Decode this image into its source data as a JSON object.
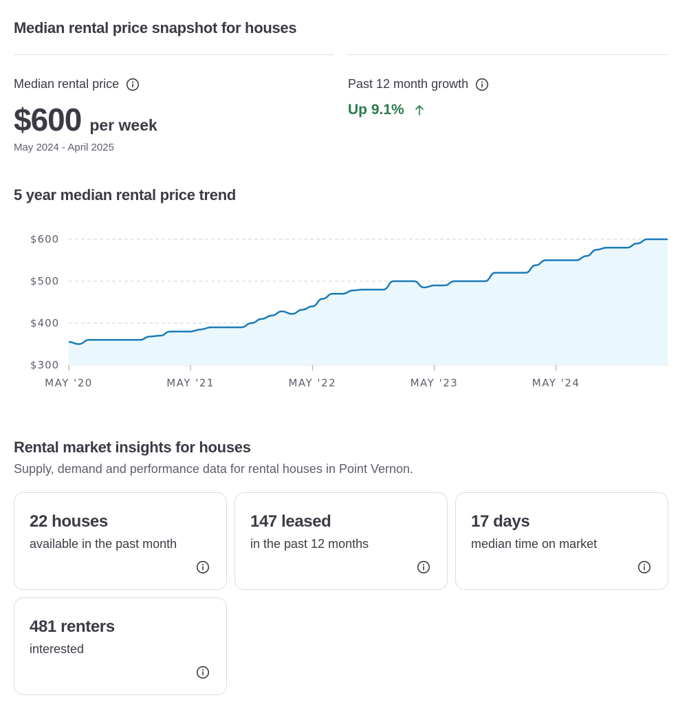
{
  "snapshot": {
    "title": "Median rental price snapshot for houses",
    "median_label": "Median rental price",
    "median_value": "$600",
    "median_unit": "per week",
    "period": "May 2024 - April 2025",
    "growth_label": "Past 12 month growth",
    "growth_value": "Up 9.1%",
    "growth_direction_icon": "arrow-up-icon",
    "growth_color": "#2a7b4a",
    "info_icon": "info-circle-icon"
  },
  "trend": {
    "title": "5 year median rental price trend"
  },
  "chart_data": {
    "type": "area",
    "title": "5 year median rental price trend",
    "xlabel": "",
    "ylabel": "",
    "ylim": [
      300,
      600
    ],
    "y_ticks": [
      "$600",
      "$500",
      "$400",
      "$300"
    ],
    "y_tick_values": [
      600,
      500,
      400,
      300
    ],
    "x_ticks": [
      "MAY '20",
      "MAY '21",
      "MAY '22",
      "MAY '23",
      "MAY '24"
    ],
    "grid": true,
    "line_color": "#1a7bb8",
    "fill_color": "#eaf8fd",
    "series": [
      {
        "x": [
          "2020-05",
          "2020-06",
          "2020-07",
          "2020-08",
          "2020-09",
          "2020-10",
          "2020-11",
          "2020-12",
          "2021-01",
          "2021-02",
          "2021-03",
          "2021-04",
          "2021-05",
          "2021-06",
          "2021-07",
          "2021-08",
          "2021-09",
          "2021-10",
          "2021-11",
          "2021-12",
          "2022-01",
          "2022-02",
          "2022-03",
          "2022-04",
          "2022-05",
          "2022-06",
          "2022-07",
          "2022-08",
          "2022-09",
          "2022-10",
          "2022-11",
          "2022-12",
          "2023-01",
          "2023-02",
          "2023-03",
          "2023-04",
          "2023-05",
          "2023-06",
          "2023-07",
          "2023-08",
          "2023-09",
          "2023-10",
          "2023-11",
          "2023-12",
          "2024-01",
          "2024-02",
          "2024-03",
          "2024-04",
          "2024-05",
          "2024-06",
          "2024-07",
          "2024-08",
          "2024-09",
          "2024-10",
          "2024-11",
          "2024-12",
          "2025-01",
          "2025-02",
          "2025-03",
          "2025-04"
        ],
        "values": [
          355,
          350,
          360,
          360,
          360,
          360,
          360,
          360,
          368,
          370,
          380,
          380,
          380,
          385,
          390,
          390,
          390,
          390,
          400,
          410,
          418,
          428,
          422,
          432,
          440,
          458,
          470,
          470,
          478,
          480,
          480,
          480,
          500,
          500,
          500,
          485,
          490,
          490,
          500,
          500,
          500,
          500,
          520,
          520,
          520,
          520,
          538,
          550,
          550,
          550,
          550,
          560,
          575,
          580,
          580,
          580,
          590,
          600,
          600,
          600
        ]
      }
    ]
  },
  "insights": {
    "title": "Rental market insights for houses",
    "subtitle": "Supply, demand and performance data for rental houses in Point Vernon.",
    "cards": [
      {
        "title": "22 houses",
        "desc": "available in the past month"
      },
      {
        "title": "147 leased",
        "desc": "in the past 12 months"
      },
      {
        "title": "17 days",
        "desc": "median time on market"
      },
      {
        "title": "481 renters",
        "desc": "interested"
      }
    ]
  }
}
